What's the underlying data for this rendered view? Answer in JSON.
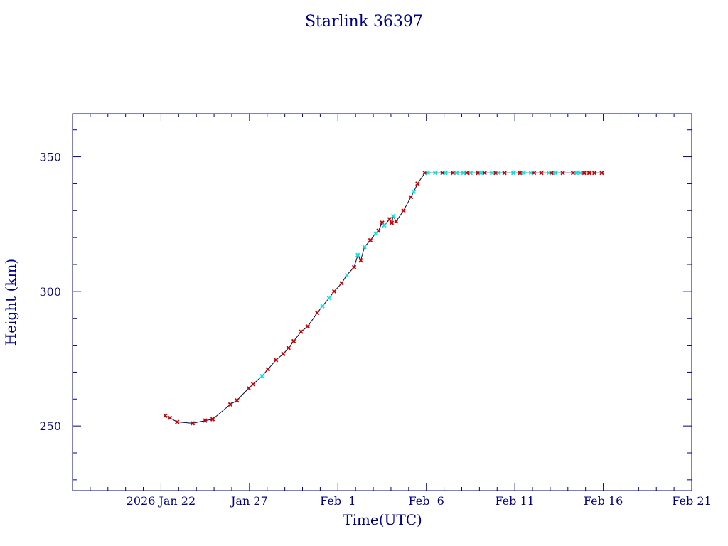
{
  "chart_data": {
    "type": "scatter",
    "title": "Starlink 36397",
    "xlabel": "Time(UTC)",
    "ylabel": "Height (km)",
    "x_unit": "date",
    "xlim": [
      "2026-01-17",
      "2026-02-21"
    ],
    "ylim": [
      226,
      366
    ],
    "x_ticks": [
      {
        "date": "2026-01-22",
        "label": "2026 Jan 22"
      },
      {
        "date": "2026-01-27",
        "label": "Jan 27"
      },
      {
        "date": "2026-02-01",
        "label": "Feb  1"
      },
      {
        "date": "2026-02-06",
        "label": "Feb  6"
      },
      {
        "date": "2026-02-11",
        "label": "Feb 11"
      },
      {
        "date": "2026-02-16",
        "label": "Feb 16"
      },
      {
        "date": "2026-02-21",
        "label": "Feb 21"
      }
    ],
    "y_ticks": [
      250,
      300,
      350
    ],
    "grid": false,
    "colors": {
      "axis": "#00008b",
      "line": "#000050",
      "red_marker": "#cc0000",
      "cyan_marker": "#00e5e5"
    },
    "series": [
      {
        "color": "#cc0000",
        "marker": "x",
        "points": [
          [
            "2026-01-22 06:00",
            253.8
          ],
          [
            "2026-01-22 12:00",
            253.0
          ],
          [
            "2026-01-22 22:00",
            251.5
          ],
          [
            "2026-01-23 19:00",
            251.0
          ],
          [
            "2026-01-24 12:00",
            252.0
          ],
          [
            "2026-01-24 22:00",
            252.5
          ],
          [
            "2026-01-25 22:00",
            258.0
          ],
          [
            "2026-01-26 07:00",
            259.5
          ],
          [
            "2026-01-26 23:00",
            264.0
          ],
          [
            "2026-01-27 05:00",
            265.5
          ],
          [
            "2026-01-28 01:00",
            271.0
          ],
          [
            "2026-01-28 12:00",
            274.5
          ],
          [
            "2026-01-28 22:00",
            276.8
          ],
          [
            "2026-01-29 05:00",
            279.0
          ],
          [
            "2026-01-29 12:00",
            281.5
          ],
          [
            "2026-01-29 22:00",
            285.0
          ],
          [
            "2026-01-30 07:00",
            287.0
          ],
          [
            "2026-01-30 20:00",
            292.0
          ],
          [
            "2026-01-31 19:00",
            300.0
          ],
          [
            "2026-02-01 05:00",
            303.0
          ],
          [
            "2026-02-01 22:00",
            309.0
          ],
          [
            "2026-02-02 07:00",
            311.5
          ],
          [
            "2026-02-02 20:00",
            319.0
          ],
          [
            "2026-02-03 07:00",
            322.5
          ],
          [
            "2026-02-03 12:00",
            325.5
          ],
          [
            "2026-02-03 22:00",
            326.8
          ],
          [
            "2026-02-04 01:00",
            325.5
          ],
          [
            "2026-02-04 07:00",
            326.0
          ],
          [
            "2026-02-04 17:00",
            330.0
          ],
          [
            "2026-02-05 03:00",
            335.0
          ],
          [
            "2026-02-05 12:00",
            340.0
          ],
          [
            "2026-02-05 22:00",
            344.0
          ],
          [
            "2026-02-06 22:00",
            344.0
          ],
          [
            "2026-02-07 12:00",
            344.0
          ],
          [
            "2026-02-08 07:00",
            344.0
          ],
          [
            "2026-02-08 22:00",
            344.0
          ],
          [
            "2026-02-09 07:00",
            344.0
          ],
          [
            "2026-02-09 22:00",
            344.0
          ],
          [
            "2026-02-10 10:00",
            344.0
          ],
          [
            "2026-02-11 07:00",
            344.0
          ],
          [
            "2026-02-12 02:00",
            344.0
          ],
          [
            "2026-02-12 12:00",
            344.0
          ],
          [
            "2026-02-13 02:00",
            344.0
          ],
          [
            "2026-02-13 17:00",
            344.0
          ],
          [
            "2026-02-14 07:00",
            344.0
          ],
          [
            "2026-02-14 22:00",
            344.0
          ],
          [
            "2026-02-15 05:00",
            344.0
          ],
          [
            "2026-02-15 12:00",
            344.0
          ],
          [
            "2026-02-15 22:00",
            344.0
          ]
        ]
      },
      {
        "color": "#00e5e5",
        "marker": "x",
        "points": [
          [
            "2026-01-27 17:00",
            268.5
          ],
          [
            "2026-01-31 03:00",
            294.5
          ],
          [
            "2026-01-31 12:00",
            297.5
          ],
          [
            "2026-02-01 12:00",
            306.0
          ],
          [
            "2026-02-02 03:00",
            313.5
          ],
          [
            "2026-02-02 12:00",
            316.5
          ],
          [
            "2026-02-03 03:00",
            321.5
          ],
          [
            "2026-02-03 15:00",
            324.5
          ],
          [
            "2026-02-04 03:00",
            328.0
          ],
          [
            "2026-02-05 07:00",
            337.0
          ],
          [
            "2026-02-06 02:00",
            344.0
          ],
          [
            "2026-02-06 12:00",
            344.0
          ],
          [
            "2026-02-07 02:00",
            344.0
          ],
          [
            "2026-02-07 17:00",
            344.0
          ],
          [
            "2026-02-08 02:00",
            344.0
          ],
          [
            "2026-02-08 12:00",
            344.0
          ],
          [
            "2026-02-09 02:00",
            344.0
          ],
          [
            "2026-02-09 17:00",
            344.0
          ],
          [
            "2026-02-10 02:00",
            344.0
          ],
          [
            "2026-02-10 22:00",
            344.0
          ],
          [
            "2026-02-11 12:00",
            344.0
          ],
          [
            "2026-02-11 22:00",
            344.0
          ],
          [
            "2026-02-12 22:00",
            344.0
          ],
          [
            "2026-02-13 07:00",
            344.0
          ],
          [
            "2026-02-14 12:00",
            344.0
          ],
          [
            "2026-02-14 17:00",
            344.0
          ]
        ]
      }
    ]
  }
}
